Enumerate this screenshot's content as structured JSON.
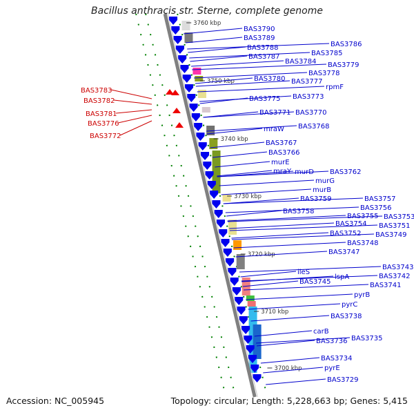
{
  "title": "Bacillus anthracis str. Sterne, complete genome",
  "footer": {
    "accession": "Accession: NC_005945",
    "summary": "Topology: circular; Length: 5,228,663 bp; Genes: 5,415"
  },
  "colors": {
    "forward_gene": "#0000ee",
    "reverse_gene": "#ee0000",
    "forward_label": "#0000cc",
    "reverse_label": "#cc0000",
    "backbone": "#808080",
    "tick": "#008000"
  },
  "scale_ticks": [
    "3760 kbp",
    "3750 kbp",
    "3740 kbp",
    "3730 kbp",
    "3720 kbp",
    "3710 kbp",
    "3700 kbp"
  ],
  "forward_genes": [
    "BAS3790",
    "BAS3789",
    "BAS3788",
    "BAS3786",
    "BAS3787",
    "BAS3785",
    "BAS3784",
    "BAS3779",
    "BAS3778",
    "BAS3780",
    "BAS3777",
    "rpmF",
    "BAS3773",
    "BAS3775",
    "BAS3771",
    "BAS3770",
    "mraW",
    "BAS3768",
    "BAS3767",
    "BAS3766",
    "murE",
    "mraY",
    "murD",
    "BAS3762",
    "murG",
    "murB",
    "BAS3759",
    "BAS3757",
    "BAS3756",
    "BAS3758",
    "BAS3755",
    "BAS3753",
    "BAS3754",
    "BAS3751",
    "BAS3752",
    "BAS3749",
    "BAS3748",
    "BAS3747",
    "BAS3743",
    "ileS",
    "BAS3742",
    "lspA",
    "BAS3745",
    "BAS3741",
    "pyrB",
    "pyrC",
    "BAS3738",
    "carB",
    "BAS3735",
    "BAS3736",
    "BAS3734",
    "pyrE",
    "BAS3729"
  ],
  "reverse_genes": [
    "BAS3783",
    "BAS3782",
    "BAS3781",
    "BAS3776",
    "BAS3772"
  ]
}
